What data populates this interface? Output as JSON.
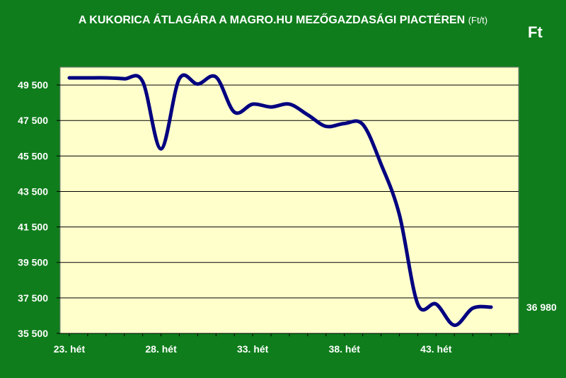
{
  "chart_data": {
    "type": "line",
    "title": "A KUKORICA ÁTLAGÁRA A MAGRO.HU MEZŐGAZDASÁGI PIACTÉREN",
    "title_unit": "(Ft/t)",
    "unit_label": "Ft",
    "xlabel": "",
    "ylabel": "",
    "x_tick_labels": [
      "23. hét",
      "28. hét",
      "33. hét",
      "38. hét",
      "43. hét"
    ],
    "y_tick_labels": [
      "35 500",
      "37 500",
      "39 500",
      "41 500",
      "43 500",
      "45 500",
      "47 500",
      "49 500"
    ],
    "y_ticks": [
      35500,
      37500,
      39500,
      41500,
      43500,
      45500,
      47500,
      49500
    ],
    "ylim": [
      35500,
      50500
    ],
    "xlim": [
      22.5,
      47.5
    ],
    "grid": true,
    "colors": {
      "background": "#0f7d1c",
      "plot_area": "#ffffcc",
      "line": "#000080",
      "gridline": "#000000"
    },
    "series": [
      {
        "x": [
          23,
          24,
          25,
          26,
          27,
          28,
          29,
          30,
          31,
          32,
          33,
          34,
          35,
          36,
          37,
          38,
          39,
          40,
          41,
          42,
          43,
          44,
          45,
          46
        ],
        "values": [
          49900,
          49900,
          49900,
          49850,
          49700,
          45900,
          49850,
          49550,
          49950,
          47970,
          48420,
          48260,
          48420,
          47820,
          47170,
          47330,
          47280,
          45040,
          42190,
          37160,
          37150,
          35960,
          36920,
          36980
        ]
      }
    ],
    "annotations": [
      {
        "text": "36 980"
      }
    ]
  }
}
